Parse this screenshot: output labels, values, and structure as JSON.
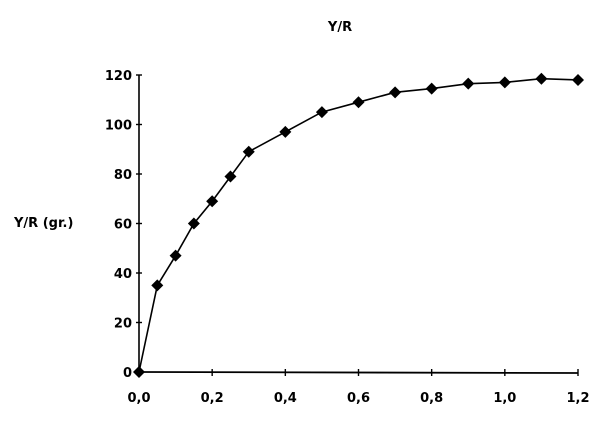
{
  "chart_data": {
    "type": "line",
    "title": "Y/R",
    "xlabel": "",
    "ylabel": "Y/R (gr.)",
    "xlim": [
      0.0,
      1.2
    ],
    "ylim": [
      0,
      120
    ],
    "x_ticks": [
      "0,0",
      "0,2",
      "0,4",
      "0,6",
      "0,8",
      "1,0",
      "1,2"
    ],
    "y_ticks": [
      "0",
      "20",
      "40",
      "60",
      "80",
      "100",
      "120"
    ],
    "grid": false,
    "legend": null,
    "marker": "diamond",
    "series": [
      {
        "name": "Y/R",
        "x": [
          0.0,
          0.05,
          0.1,
          0.15,
          0.2,
          0.25,
          0.3,
          0.4,
          0.5,
          0.6,
          0.7,
          0.8,
          0.9,
          1.0,
          1.1,
          1.2
        ],
        "values": [
          0,
          35,
          47,
          60,
          69,
          79,
          89,
          97,
          105,
          109,
          113,
          114.5,
          116.5,
          117,
          118.5,
          118
        ]
      }
    ]
  },
  "colors": {
    "line": "#000000",
    "background": "#ffffff"
  }
}
